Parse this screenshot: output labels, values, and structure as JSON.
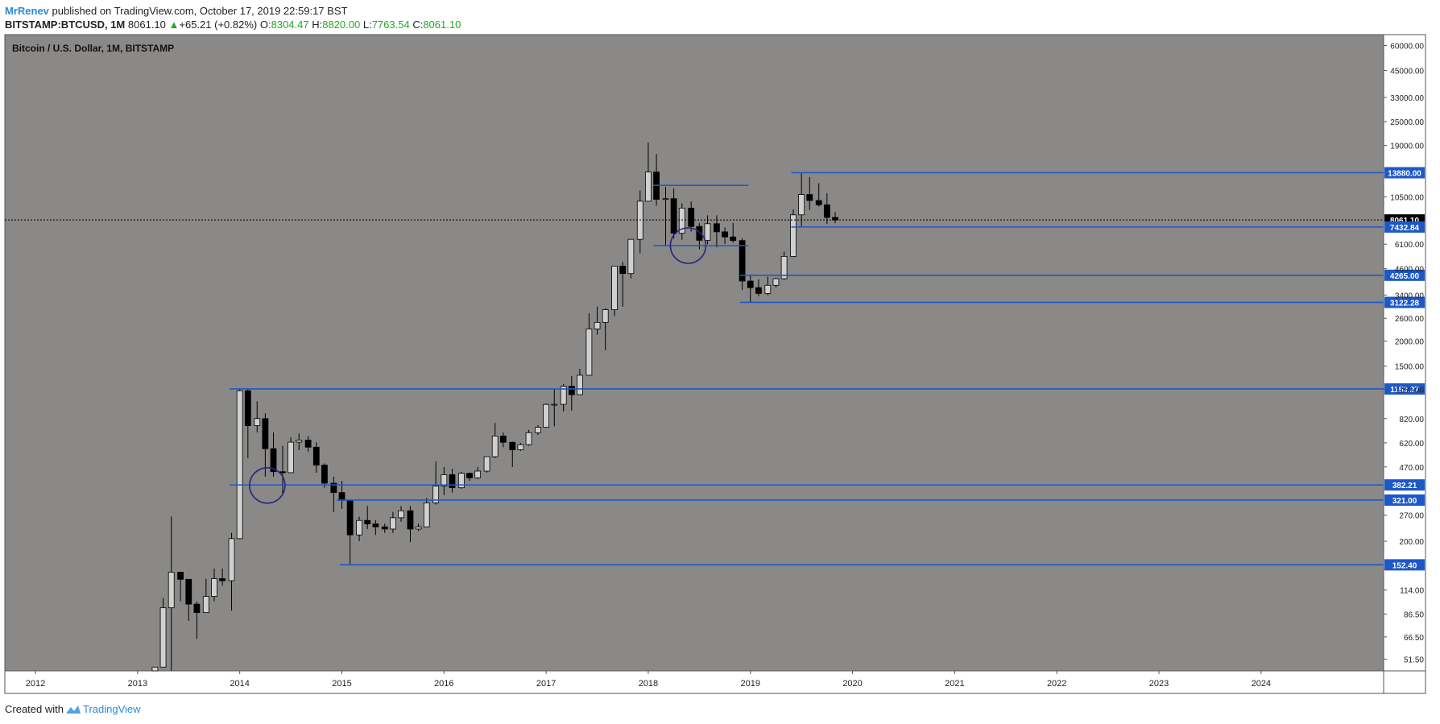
{
  "header": {
    "author": "MrRenev",
    "published": "published on TradingView.com, October 17, 2019 22:59:17 BST",
    "symbol": "BITSTAMP:BTCUSD, 1M",
    "last": "8061.10",
    "change": "+65.21 (+0.82%)",
    "o_label": "O:",
    "o_value": "8304.47",
    "h_label": "H:",
    "h_value": "8820.00",
    "l_label": "L:",
    "l_value": "7763.54",
    "c_label": "C:",
    "c_value": "8061.10"
  },
  "footer": {
    "created_with": "Created with",
    "brand": "TradingView"
  },
  "colors": {
    "background": "#8a8987",
    "line": "#1d58c8",
    "up": "#d0d0d0",
    "down": "#000000"
  },
  "chart_data": {
    "type": "candlestick",
    "title": "Bitcoin / U.S. Dollar, 1M, BITSTAMP",
    "scale": "log",
    "ylim": [
      45,
      68000
    ],
    "x_range": [
      2011.7,
      2025.2
    ],
    "x_ticks": [
      "2012",
      "2013",
      "2014",
      "2015",
      "2016",
      "2017",
      "2018",
      "2019",
      "2020",
      "2021",
      "2022",
      "2023",
      "2024"
    ],
    "y_ticks": [
      "60000.00",
      "45000.00",
      "33000.00",
      "25000.00",
      "19000.00",
      "10500.00",
      "6100.00",
      "4600.00",
      "3400.00",
      "2600.00",
      "2000.00",
      "1500.00",
      "1150.00",
      "820.00",
      "620.00",
      "470.00",
      "270.00",
      "200.00",
      "114.00",
      "86.50",
      "66.50",
      "51.50"
    ],
    "current_price": {
      "value": 8061.1,
      "label": "8061.10"
    },
    "levels": [
      {
        "value": 13880.0,
        "label": "13880.00",
        "from": 2019.4,
        "to": 2025.2
      },
      {
        "value": 12000.0,
        "label": "",
        "from": 2018.05,
        "to": 2018.98
      },
      {
        "value": 7432.84,
        "label": "7432.84",
        "from": 2019.4,
        "to": 2025.2
      },
      {
        "value": 6000.0,
        "label": "",
        "from": 2018.05,
        "to": 2018.98
      },
      {
        "value": 4265.0,
        "label": "4265.00",
        "from": 2018.9,
        "to": 2025.2
      },
      {
        "value": 3122.28,
        "label": "3122.28",
        "from": 2018.9,
        "to": 2025.2
      },
      {
        "value": 1153.27,
        "label": "1153.27",
        "from": 2013.9,
        "to": 2025.2
      },
      {
        "value": 382.21,
        "label": "382.21",
        "from": 2013.9,
        "to": 2025.2
      },
      {
        "value": 321.0,
        "label": "321.00",
        "from": 2014.95,
        "to": 2025.2
      },
      {
        "value": 152.4,
        "label": "152.40",
        "from": 2014.98,
        "to": 2025.2
      }
    ],
    "circles": [
      {
        "t": 2014.27,
        "value": 380
      },
      {
        "t": 2018.39,
        "value": 6000
      }
    ],
    "candles": [
      {
        "t": 2013.17,
        "o": 30,
        "h": 47,
        "l": 30,
        "c": 47
      },
      {
        "t": 2013.25,
        "o": 47,
        "h": 104,
        "l": 47,
        "c": 93
      },
      {
        "t": 2013.33,
        "o": 93,
        "h": 266,
        "l": 45,
        "c": 140
      },
      {
        "t": 2013.42,
        "o": 140,
        "h": 140,
        "l": 100,
        "c": 129
      },
      {
        "t": 2013.5,
        "o": 129,
        "h": 129,
        "l": 80,
        "c": 97
      },
      {
        "t": 2013.58,
        "o": 97,
        "h": 100,
        "l": 65,
        "c": 88
      },
      {
        "t": 2013.67,
        "o": 88,
        "h": 130,
        "l": 88,
        "c": 106
      },
      {
        "t": 2013.75,
        "o": 106,
        "h": 146,
        "l": 100,
        "c": 130
      },
      {
        "t": 2013.83,
        "o": 130,
        "h": 146,
        "l": 120,
        "c": 127
      },
      {
        "t": 2013.92,
        "o": 127,
        "h": 220,
        "l": 90,
        "c": 206
      },
      {
        "t": 2014.0,
        "o": 206,
        "h": 1163,
        "l": 206,
        "c": 1130
      },
      {
        "t": 2014.08,
        "o": 1130,
        "h": 1163,
        "l": 520,
        "c": 756
      },
      {
        "t": 2014.17,
        "o": 756,
        "h": 1000,
        "l": 700,
        "c": 820
      },
      {
        "t": 2014.25,
        "o": 820,
        "h": 870,
        "l": 420,
        "c": 580
      },
      {
        "t": 2014.33,
        "o": 580,
        "h": 700,
        "l": 420,
        "c": 445
      },
      {
        "t": 2014.42,
        "o": 445,
        "h": 600,
        "l": 340,
        "c": 440
      },
      {
        "t": 2014.5,
        "o": 440,
        "h": 660,
        "l": 440,
        "c": 625
      },
      {
        "t": 2014.58,
        "o": 625,
        "h": 690,
        "l": 570,
        "c": 640
      },
      {
        "t": 2014.67,
        "o": 640,
        "h": 670,
        "l": 560,
        "c": 590
      },
      {
        "t": 2014.75,
        "o": 590,
        "h": 625,
        "l": 440,
        "c": 480
      },
      {
        "t": 2014.83,
        "o": 480,
        "h": 490,
        "l": 370,
        "c": 390
      },
      {
        "t": 2014.92,
        "o": 390,
        "h": 420,
        "l": 280,
        "c": 350
      },
      {
        "t": 2015.0,
        "o": 350,
        "h": 400,
        "l": 290,
        "c": 320
      },
      {
        "t": 2015.08,
        "o": 320,
        "h": 320,
        "l": 152,
        "c": 215
      },
      {
        "t": 2015.17,
        "o": 215,
        "h": 265,
        "l": 200,
        "c": 254
      },
      {
        "t": 2015.25,
        "o": 254,
        "h": 300,
        "l": 230,
        "c": 244
      },
      {
        "t": 2015.33,
        "o": 244,
        "h": 255,
        "l": 215,
        "c": 236
      },
      {
        "t": 2015.42,
        "o": 236,
        "h": 245,
        "l": 220,
        "c": 230
      },
      {
        "t": 2015.5,
        "o": 230,
        "h": 280,
        "l": 220,
        "c": 262
      },
      {
        "t": 2015.58,
        "o": 262,
        "h": 300,
        "l": 250,
        "c": 284
      },
      {
        "t": 2015.67,
        "o": 284,
        "h": 300,
        "l": 198,
        "c": 230
      },
      {
        "t": 2015.75,
        "o": 230,
        "h": 245,
        "l": 225,
        "c": 236
      },
      {
        "t": 2015.83,
        "o": 236,
        "h": 330,
        "l": 236,
        "c": 311
      },
      {
        "t": 2015.92,
        "o": 311,
        "h": 500,
        "l": 305,
        "c": 377
      },
      {
        "t": 2016.0,
        "o": 377,
        "h": 470,
        "l": 340,
        "c": 430
      },
      {
        "t": 2016.08,
        "o": 430,
        "h": 460,
        "l": 350,
        "c": 370
      },
      {
        "t": 2016.17,
        "o": 370,
        "h": 445,
        "l": 365,
        "c": 437
      },
      {
        "t": 2016.25,
        "o": 437,
        "h": 440,
        "l": 400,
        "c": 415
      },
      {
        "t": 2016.33,
        "o": 415,
        "h": 470,
        "l": 410,
        "c": 448
      },
      {
        "t": 2016.42,
        "o": 448,
        "h": 470,
        "l": 440,
        "c": 529
      },
      {
        "t": 2016.5,
        "o": 529,
        "h": 780,
        "l": 520,
        "c": 671
      },
      {
        "t": 2016.58,
        "o": 671,
        "h": 700,
        "l": 590,
        "c": 624
      },
      {
        "t": 2016.67,
        "o": 624,
        "h": 630,
        "l": 470,
        "c": 573
      },
      {
        "t": 2016.75,
        "o": 573,
        "h": 620,
        "l": 565,
        "c": 608
      },
      {
        "t": 2016.83,
        "o": 608,
        "h": 720,
        "l": 600,
        "c": 697
      },
      {
        "t": 2016.92,
        "o": 697,
        "h": 760,
        "l": 680,
        "c": 742
      },
      {
        "t": 2017.0,
        "o": 742,
        "h": 975,
        "l": 740,
        "c": 965
      },
      {
        "t": 2017.08,
        "o": 965,
        "h": 1160,
        "l": 750,
        "c": 966
      },
      {
        "t": 2017.17,
        "o": 966,
        "h": 1220,
        "l": 890,
        "c": 1190
      },
      {
        "t": 2017.25,
        "o": 1190,
        "h": 1340,
        "l": 900,
        "c": 1080
      },
      {
        "t": 2017.33,
        "o": 1080,
        "h": 1450,
        "l": 1080,
        "c": 1350
      },
      {
        "t": 2017.42,
        "o": 1350,
        "h": 2750,
        "l": 1350,
        "c": 2300
      },
      {
        "t": 2017.5,
        "o": 2300,
        "h": 2980,
        "l": 2150,
        "c": 2480
      },
      {
        "t": 2017.58,
        "o": 2480,
        "h": 2920,
        "l": 1800,
        "c": 2870
      },
      {
        "t": 2017.67,
        "o": 2870,
        "h": 4740,
        "l": 2670,
        "c": 4740
      },
      {
        "t": 2017.75,
        "o": 4740,
        "h": 4980,
        "l": 2970,
        "c": 4350
      },
      {
        "t": 2017.83,
        "o": 4350,
        "h": 6470,
        "l": 4110,
        "c": 6450
      },
      {
        "t": 2017.92,
        "o": 6450,
        "h": 11300,
        "l": 5500,
        "c": 10000
      },
      {
        "t": 2018.0,
        "o": 10000,
        "h": 19666,
        "l": 10000,
        "c": 14000
      },
      {
        "t": 2018.08,
        "o": 14000,
        "h": 17200,
        "l": 9500,
        "c": 10220
      },
      {
        "t": 2018.17,
        "o": 10220,
        "h": 11800,
        "l": 6000,
        "c": 10300
      },
      {
        "t": 2018.25,
        "o": 10300,
        "h": 11600,
        "l": 6500,
        "c": 6920
      },
      {
        "t": 2018.33,
        "o": 6920,
        "h": 9750,
        "l": 6420,
        "c": 9240
      },
      {
        "t": 2018.42,
        "o": 9240,
        "h": 9980,
        "l": 7050,
        "c": 7480
      },
      {
        "t": 2018.5,
        "o": 7480,
        "h": 7770,
        "l": 5750,
        "c": 6380
      },
      {
        "t": 2018.58,
        "o": 6380,
        "h": 8500,
        "l": 6100,
        "c": 7720
      },
      {
        "t": 2018.67,
        "o": 7720,
        "h": 8500,
        "l": 5880,
        "c": 7030
      },
      {
        "t": 2018.75,
        "o": 7030,
        "h": 7400,
        "l": 6130,
        "c": 6630
      },
      {
        "t": 2018.83,
        "o": 6630,
        "h": 7790,
        "l": 6200,
        "c": 6360
      },
      {
        "t": 2018.92,
        "o": 6360,
        "h": 6540,
        "l": 3600,
        "c": 3990
      },
      {
        "t": 2019.0,
        "o": 3990,
        "h": 4300,
        "l": 3130,
        "c": 3700
      },
      {
        "t": 2019.08,
        "o": 3700,
        "h": 4070,
        "l": 3350,
        "c": 3460
      },
      {
        "t": 2019.17,
        "o": 3460,
        "h": 4200,
        "l": 3390,
        "c": 3800
      },
      {
        "t": 2019.25,
        "o": 3800,
        "h": 4150,
        "l": 3700,
        "c": 4100
      },
      {
        "t": 2019.33,
        "o": 4100,
        "h": 5600,
        "l": 4050,
        "c": 5300
      },
      {
        "t": 2019.42,
        "o": 5300,
        "h": 9100,
        "l": 5300,
        "c": 8550
      },
      {
        "t": 2019.5,
        "o": 8550,
        "h": 13880,
        "l": 7450,
        "c": 10800
      },
      {
        "t": 2019.58,
        "o": 10800,
        "h": 13200,
        "l": 9050,
        "c": 10080
      },
      {
        "t": 2019.67,
        "o": 10080,
        "h": 12300,
        "l": 9400,
        "c": 9600
      },
      {
        "t": 2019.75,
        "o": 9600,
        "h": 10950,
        "l": 7700,
        "c": 8300
      },
      {
        "t": 2019.83,
        "o": 8304,
        "h": 8820,
        "l": 7764,
        "c": 8061
      }
    ]
  }
}
